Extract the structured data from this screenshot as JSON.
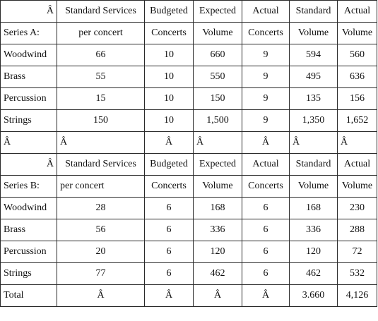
{
  "table": {
    "rows": [
      [
        "Â",
        "Standard Services",
        "Budgeted",
        "Expected",
        "Actual",
        "Standard",
        "Actual"
      ],
      [
        "Series A:",
        "per concert",
        "Concerts",
        "Volume",
        "Concerts",
        "Volume",
        "Volume"
      ],
      [
        "Woodwind",
        "66",
        "10",
        "660",
        "9",
        "594",
        "560"
      ],
      [
        "Brass",
        "55",
        "10",
        "550",
        "9",
        "495",
        "636"
      ],
      [
        "Percussion",
        "15",
        "10",
        "150",
        "9",
        "135",
        "156"
      ],
      [
        "Strings",
        "150",
        "10",
        "1,500",
        "9",
        "1,350",
        "1,652"
      ],
      [
        "Â",
        "Â",
        "Â",
        "Â",
        "Â",
        "Â",
        "Â"
      ],
      [
        "Â",
        "Standard Services",
        "Budgeted",
        "Expected",
        "Actual",
        "Standard",
        "Actual"
      ],
      [
        "Series B:",
        "per concert",
        "Concerts",
        "Volume",
        "Concerts",
        "Volume",
        "Volume"
      ],
      [
        "Woodwind",
        "28",
        "6",
        "168",
        "6",
        "168",
        "230"
      ],
      [
        "Brass",
        "56",
        "6",
        "336",
        "6",
        "336",
        "288"
      ],
      [
        "Percussion",
        "20",
        "6",
        "120",
        "6",
        "120",
        "72"
      ],
      [
        "Strings",
        "77",
        "6",
        "462",
        "6",
        "462",
        "532"
      ],
      [
        "Total",
        "Â",
        "Â",
        "Â",
        "Â",
        "3.660",
        "4,126"
      ]
    ]
  }
}
